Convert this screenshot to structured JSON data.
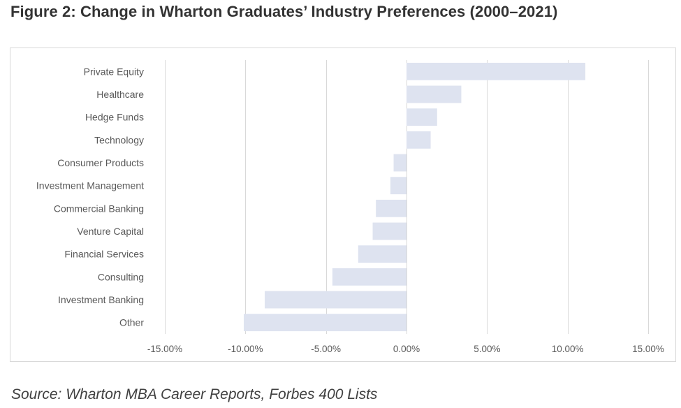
{
  "figure": {
    "title": "Figure 2: Change in Wharton Graduates’ Industry Preferences (2000–2021)",
    "source": "Source: Wharton MBA Career Reports, Forbes 400 Lists"
  },
  "colors": {
    "bar": "#dee3f0",
    "grid": "#d9d9d9",
    "label_text": "#595959",
    "title_text": "#333333"
  },
  "chart_data": {
    "type": "bar",
    "orientation": "horizontal",
    "categories": [
      "Private Equity",
      "Healthcare",
      "Hedge Funds",
      "Technology",
      "Consumer Products",
      "Investment Management",
      "Commercial Banking",
      "Venture Capital",
      "Financial Services",
      "Consulting",
      "Investment Banking",
      "Other"
    ],
    "values": [
      11.1,
      3.4,
      1.9,
      1.5,
      -0.8,
      -1.0,
      -1.9,
      -2.1,
      -3.0,
      -4.6,
      -8.8,
      -10.1
    ],
    "xlim": [
      -15,
      15
    ],
    "xticks": [
      -15,
      -10,
      -5,
      0,
      5,
      10,
      15
    ],
    "xtick_labels": [
      "-15.00%",
      "-10.00%",
      "-5.00%",
      "0.00%",
      "5.00%",
      "10.00%",
      "15.00%"
    ],
    "grid": true,
    "legend": "none",
    "title": "",
    "xlabel": "",
    "ylabel": ""
  }
}
